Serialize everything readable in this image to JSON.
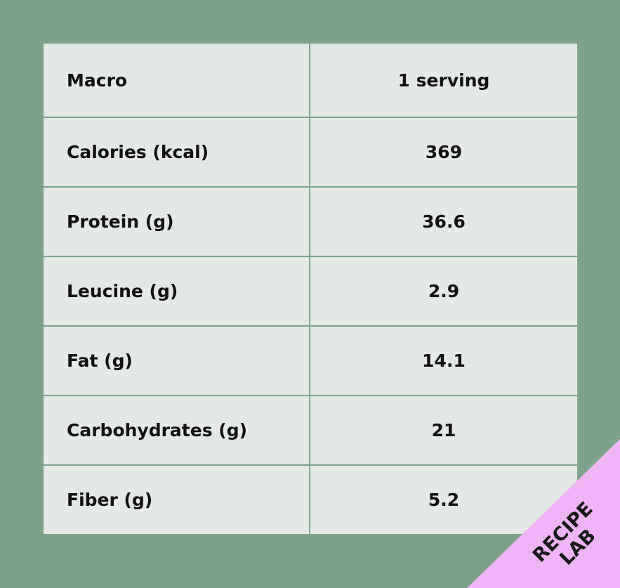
{
  "table": {
    "header": [
      "Macro",
      "1 serving"
    ],
    "rows": [
      [
        "Calories (kcal)",
        "369"
      ],
      [
        "Protein (g)",
        "36.6"
      ],
      [
        "Leucine (g)",
        "2.9"
      ],
      [
        "Fat (g)",
        "14.1"
      ],
      [
        "Carbohydrates (g)",
        "21"
      ],
      [
        "Fiber (g)",
        "5.2"
      ]
    ]
  },
  "badge": {
    "lines": [
      "RECIPE",
      "LAB"
    ]
  }
}
